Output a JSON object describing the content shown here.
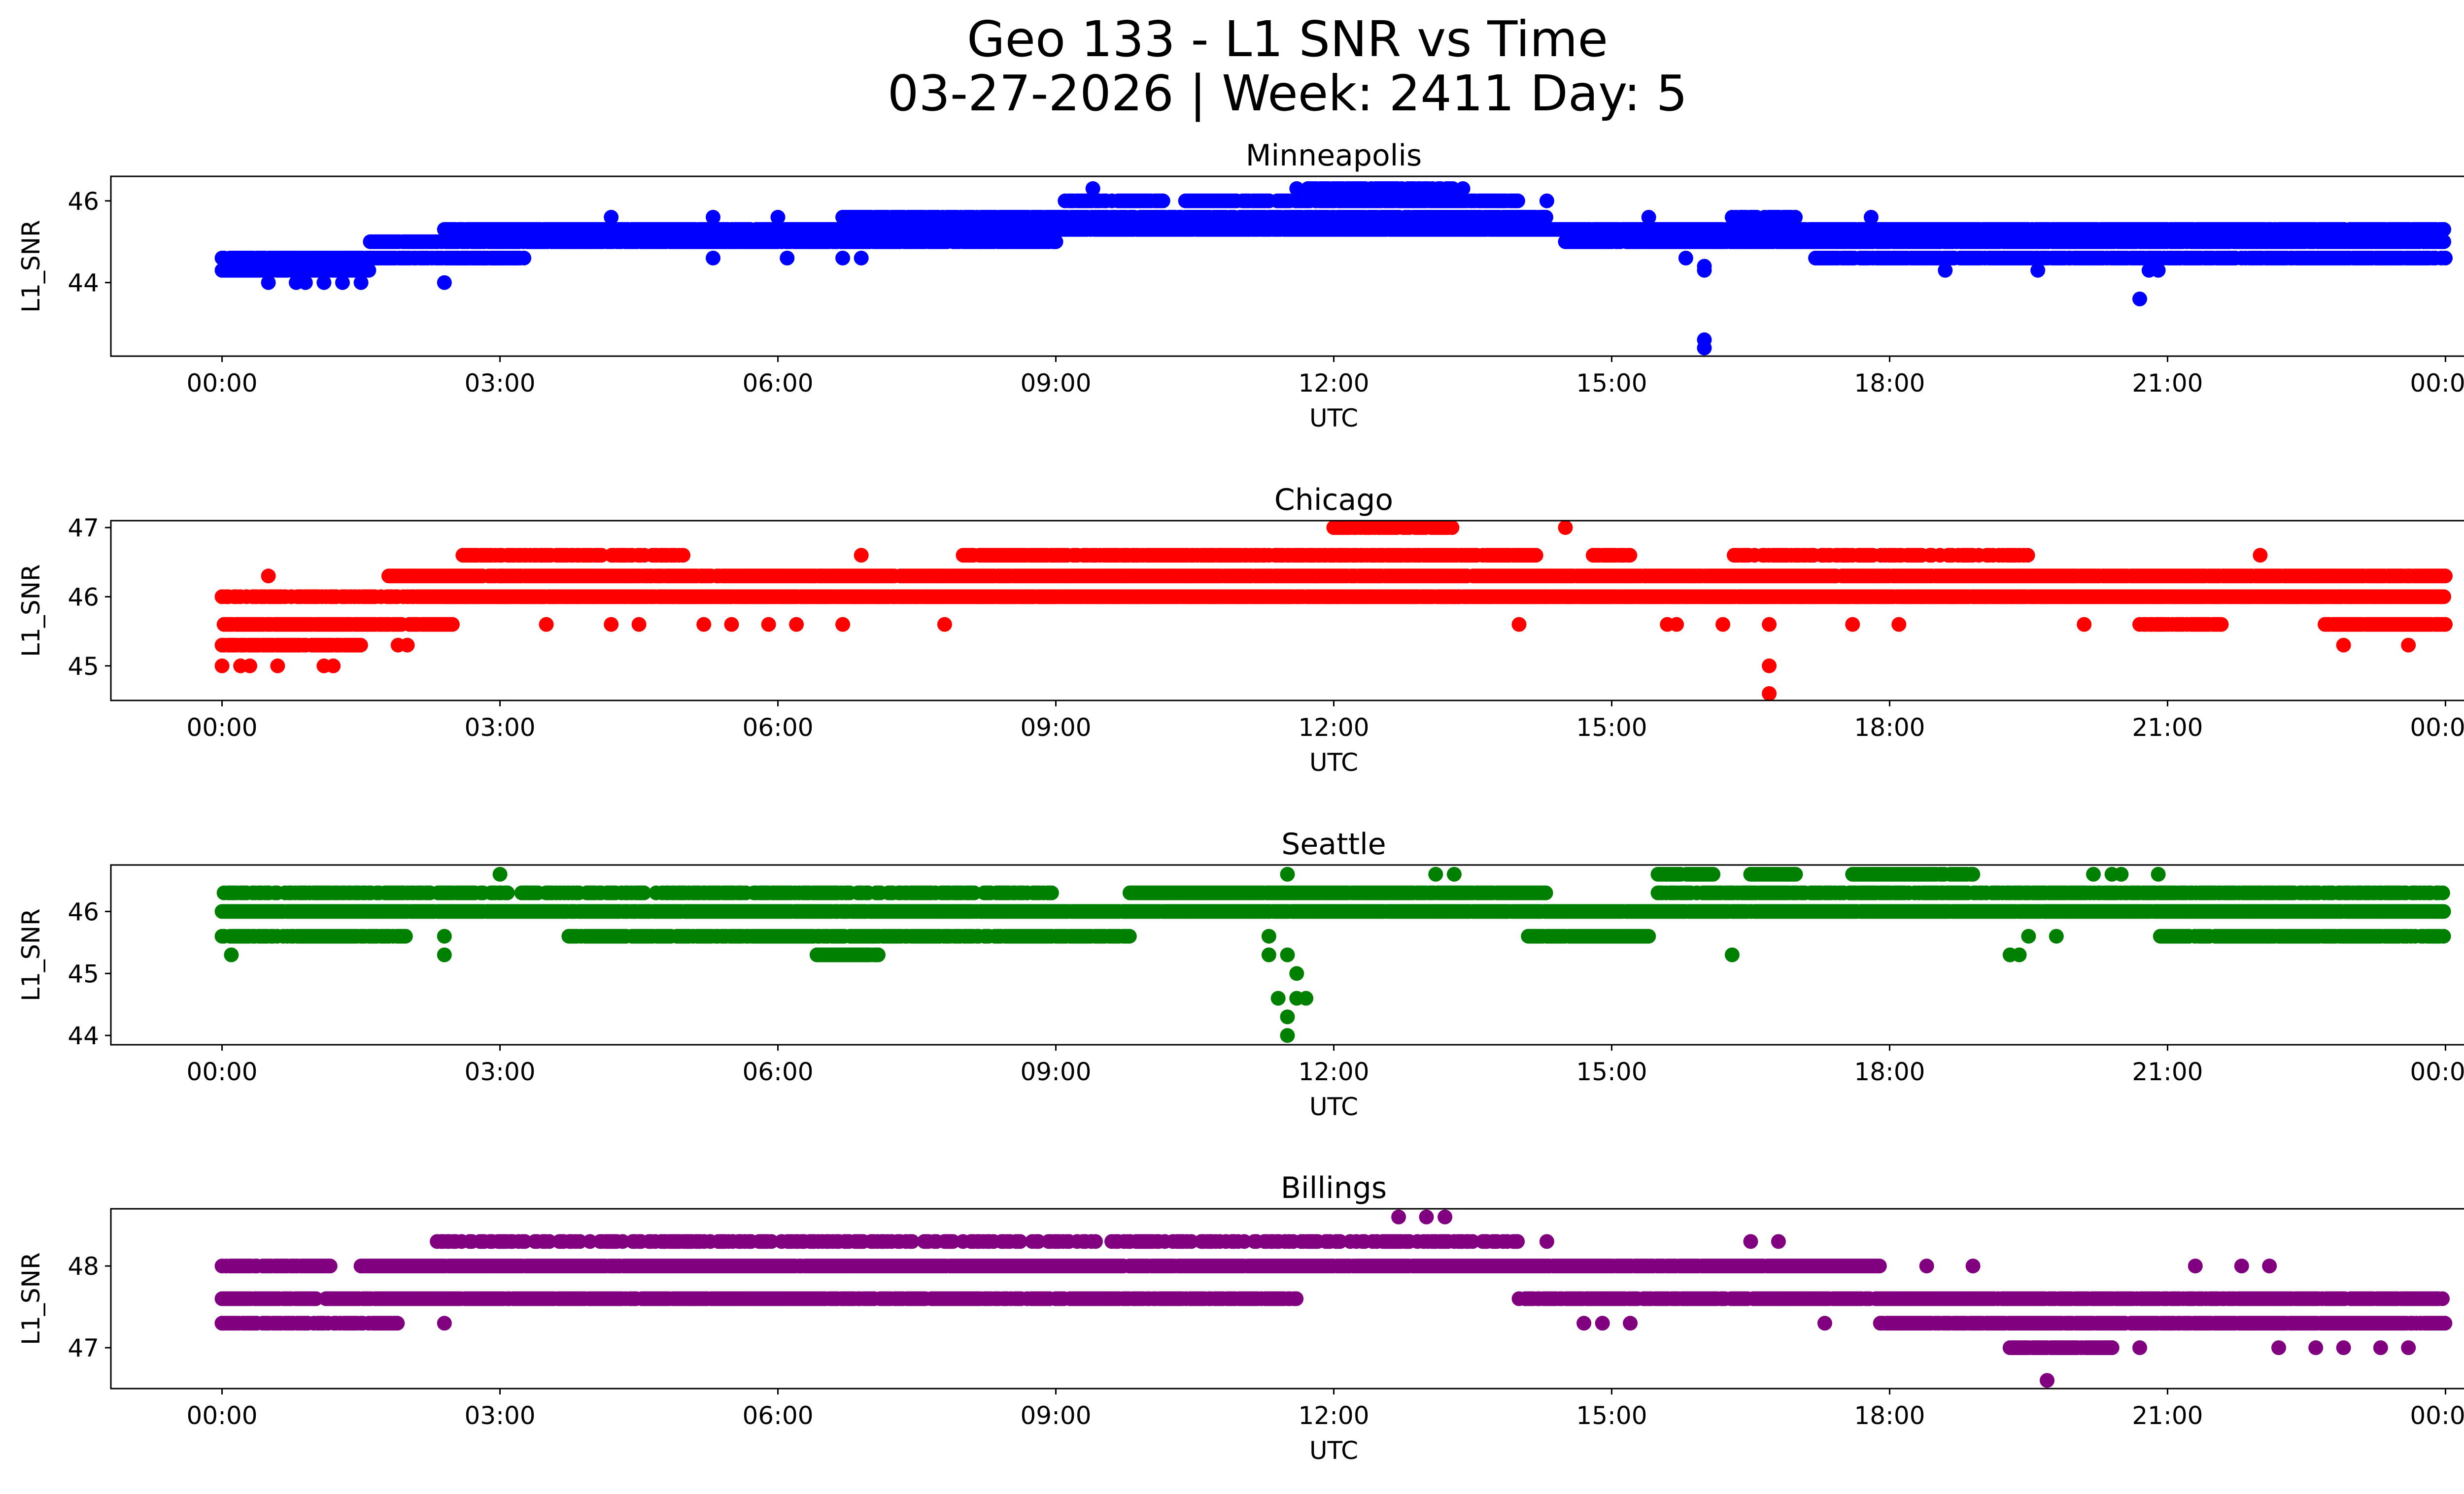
{
  "figure": {
    "title_line1": "Geo 133 - L1 SNR vs Time",
    "title_line2": "03-27-2026 | Week: 2411 Day: 5"
  },
  "chart_data": [
    {
      "type": "scatter",
      "title": "Minneapolis",
      "color": "#0000ff",
      "xlabel": "UTC",
      "ylabel": "L1_SNR",
      "x_unit": "hours UTC",
      "xlim": [
        -1.2,
        25.2
      ],
      "ylim": [
        42.2,
        46.6
      ],
      "xticks": [
        0,
        3,
        6,
        9,
        12,
        15,
        18,
        21,
        24
      ],
      "xtick_labels": [
        "00:00",
        "03:00",
        "06:00",
        "09:00",
        "12:00",
        "15:00",
        "18:00",
        "21:00",
        "00:00"
      ],
      "yticks": [
        44,
        46
      ],
      "ytick_labels": [
        "44",
        "46"
      ],
      "bands": [
        {
          "y": 44.3,
          "from": 0.0,
          "to": 1.6,
          "density": 0.95
        },
        {
          "y": 44.6,
          "from": 0.0,
          "to": 3.2,
          "density": 0.9
        },
        {
          "y": 45.0,
          "from": 1.6,
          "to": 9.0,
          "density": 0.9
        },
        {
          "y": 45.0,
          "from": 14.5,
          "to": 24.0,
          "density": 0.95
        },
        {
          "y": 45.3,
          "from": 2.4,
          "to": 24.0,
          "density": 0.95
        },
        {
          "y": 45.6,
          "from": 6.7,
          "to": 14.3,
          "density": 0.9
        },
        {
          "y": 45.6,
          "from": 16.3,
          "to": 17.0,
          "density": 0.8
        },
        {
          "y": 46.0,
          "from": 9.1,
          "to": 10.2,
          "density": 0.8
        },
        {
          "y": 46.0,
          "from": 10.4,
          "to": 14.0,
          "density": 0.85
        },
        {
          "y": 46.3,
          "from": 11.7,
          "to": 13.4,
          "density": 0.8
        },
        {
          "y": 44.6,
          "from": 2.4,
          "to": 3.3,
          "density": 0.7
        },
        {
          "y": 44.6,
          "from": 17.2,
          "to": 24.0,
          "density": 0.85
        }
      ],
      "points": [
        [
          0.5,
          44.0
        ],
        [
          0.8,
          44.0
        ],
        [
          0.9,
          44.0
        ],
        [
          1.1,
          44.0
        ],
        [
          1.3,
          44.0
        ],
        [
          1.5,
          44.0
        ],
        [
          2.4,
          44.0
        ],
        [
          4.2,
          45.6
        ],
        [
          5.3,
          44.6
        ],
        [
          5.3,
          45.6
        ],
        [
          6.0,
          45.6
        ],
        [
          6.1,
          44.6
        ],
        [
          6.7,
          44.6
        ],
        [
          6.9,
          44.6
        ],
        [
          8.8,
          45.0
        ],
        [
          9.0,
          45.0
        ],
        [
          9.4,
          46.3
        ],
        [
          11.6,
          46.3
        ],
        [
          11.8,
          45.6
        ],
        [
          12.4,
          45.6
        ],
        [
          14.3,
          46.0
        ],
        [
          15.4,
          45.6
        ],
        [
          15.8,
          44.6
        ],
        [
          16.0,
          44.3
        ],
        [
          16.0,
          44.4
        ],
        [
          16.0,
          42.6
        ],
        [
          16.0,
          42.4
        ],
        [
          18.6,
          44.3
        ],
        [
          19.6,
          44.3
        ],
        [
          20.7,
          43.6
        ],
        [
          20.8,
          44.3
        ],
        [
          20.9,
          44.3
        ],
        [
          17.8,
          45.6
        ]
      ]
    },
    {
      "type": "scatter",
      "title": "Chicago",
      "color": "#ff0000",
      "xlabel": "UTC",
      "ylabel": "L1_SNR",
      "x_unit": "hours UTC",
      "xlim": [
        -1.2,
        25.2
      ],
      "ylim": [
        44.5,
        47.1
      ],
      "xticks": [
        0,
        3,
        6,
        9,
        12,
        15,
        18,
        21,
        24
      ],
      "xtick_labels": [
        "00:00",
        "03:00",
        "06:00",
        "09:00",
        "12:00",
        "15:00",
        "18:00",
        "21:00",
        "00:00"
      ],
      "yticks": [
        45,
        46,
        47
      ],
      "ytick_labels": [
        "45",
        "46",
        "47"
      ],
      "bands": [
        {
          "y": 45.3,
          "from": 0.0,
          "to": 1.5,
          "density": 0.8
        },
        {
          "y": 45.6,
          "from": 0.0,
          "to": 2.5,
          "density": 0.9
        },
        {
          "y": 46.0,
          "from": 0.0,
          "to": 24.0,
          "density": 0.7
        },
        {
          "y": 46.0,
          "from": 2.4,
          "to": 24.0,
          "density": 0.95
        },
        {
          "y": 46.3,
          "from": 1.8,
          "to": 24.0,
          "density": 0.95
        },
        {
          "y": 46.6,
          "from": 2.6,
          "to": 5.0,
          "density": 0.7
        },
        {
          "y": 46.6,
          "from": 8.0,
          "to": 14.2,
          "density": 0.85
        },
        {
          "y": 46.6,
          "from": 14.8,
          "to": 15.2,
          "density": 0.8
        },
        {
          "y": 46.6,
          "from": 16.3,
          "to": 19.5,
          "density": 0.6
        },
        {
          "y": 47.0,
          "from": 12.0,
          "to": 13.3,
          "density": 0.85
        },
        {
          "y": 45.6,
          "from": 20.7,
          "to": 21.6,
          "density": 0.85
        },
        {
          "y": 45.6,
          "from": 22.7,
          "to": 24.0,
          "density": 0.9
        }
      ],
      "points": [
        [
          0.0,
          45.0
        ],
        [
          0.2,
          45.0
        ],
        [
          0.3,
          45.0
        ],
        [
          0.6,
          45.0
        ],
        [
          1.1,
          45.0
        ],
        [
          1.2,
          45.0
        ],
        [
          0.5,
          46.3
        ],
        [
          1.9,
          45.3
        ],
        [
          2.0,
          45.3
        ],
        [
          3.5,
          45.6
        ],
        [
          4.2,
          45.6
        ],
        [
          4.5,
          45.6
        ],
        [
          5.2,
          45.6
        ],
        [
          5.5,
          45.6
        ],
        [
          5.9,
          45.6
        ],
        [
          6.2,
          45.6
        ],
        [
          6.7,
          45.6
        ],
        [
          6.9,
          46.6
        ],
        [
          7.8,
          45.6
        ],
        [
          14.0,
          45.6
        ],
        [
          14.5,
          47.0
        ],
        [
          15.6,
          45.6
        ],
        [
          15.7,
          45.6
        ],
        [
          16.2,
          45.6
        ],
        [
          16.7,
          45.6
        ],
        [
          16.7,
          45.0
        ],
        [
          16.7,
          44.6
        ],
        [
          17.6,
          45.6
        ],
        [
          18.1,
          45.6
        ],
        [
          20.1,
          45.6
        ],
        [
          22.0,
          46.6
        ],
        [
          22.9,
          45.3
        ],
        [
          23.6,
          45.3
        ]
      ]
    },
    {
      "type": "scatter",
      "title": "Seattle",
      "color": "#008000",
      "xlabel": "UTC",
      "ylabel": "L1_SNR",
      "x_unit": "hours UTC",
      "xlim": [
        -1.2,
        25.2
      ],
      "ylim": [
        43.85,
        46.75
      ],
      "xticks": [
        0,
        3,
        6,
        9,
        12,
        15,
        18,
        21,
        24
      ],
      "xtick_labels": [
        "00:00",
        "03:00",
        "06:00",
        "09:00",
        "12:00",
        "15:00",
        "18:00",
        "21:00",
        "00:00"
      ],
      "yticks": [
        44,
        45,
        46
      ],
      "ytick_labels": [
        "44",
        "45",
        "46"
      ],
      "bands": [
        {
          "y": 45.6,
          "from": 0.0,
          "to": 2.0,
          "density": 0.85
        },
        {
          "y": 45.6,
          "from": 3.7,
          "to": 9.8,
          "density": 0.85
        },
        {
          "y": 45.6,
          "from": 14.1,
          "to": 15.4,
          "density": 0.95
        },
        {
          "y": 45.6,
          "from": 20.9,
          "to": 24.0,
          "density": 0.9
        },
        {
          "y": 46.0,
          "from": 0.0,
          "to": 24.0,
          "density": 0.97
        },
        {
          "y": 46.3,
          "from": 0.0,
          "to": 9.0,
          "density": 0.65
        },
        {
          "y": 46.3,
          "from": 9.8,
          "to": 14.3,
          "density": 0.95
        },
        {
          "y": 46.3,
          "from": 15.5,
          "to": 24.0,
          "density": 0.75
        },
        {
          "y": 46.6,
          "from": 15.5,
          "to": 16.1,
          "density": 0.9
        },
        {
          "y": 46.6,
          "from": 16.5,
          "to": 17.0,
          "density": 0.8
        },
        {
          "y": 46.6,
          "from": 17.6,
          "to": 18.9,
          "density": 0.9
        },
        {
          "y": 45.3,
          "from": 6.4,
          "to": 7.1,
          "density": 0.9
        }
      ],
      "points": [
        [
          0.1,
          45.3
        ],
        [
          2.4,
          45.3
        ],
        [
          2.4,
          45.6
        ],
        [
          3.0,
          46.6
        ],
        [
          11.3,
          45.3
        ],
        [
          11.3,
          45.6
        ],
        [
          11.5,
          45.3
        ],
        [
          11.6,
          45.0
        ],
        [
          11.4,
          44.6
        ],
        [
          11.6,
          44.6
        ],
        [
          11.7,
          44.6
        ],
        [
          11.5,
          44.3
        ],
        [
          11.5,
          44.0
        ],
        [
          11.5,
          46.6
        ],
        [
          13.1,
          46.6
        ],
        [
          13.3,
          46.6
        ],
        [
          16.3,
          45.3
        ],
        [
          19.3,
          45.3
        ],
        [
          19.4,
          45.3
        ],
        [
          19.5,
          45.6
        ],
        [
          19.8,
          45.6
        ],
        [
          20.2,
          46.6
        ],
        [
          20.4,
          46.6
        ],
        [
          20.5,
          46.6
        ],
        [
          20.9,
          46.6
        ],
        [
          22.1,
          45.6
        ]
      ]
    },
    {
      "type": "scatter",
      "title": "Billings",
      "color": "#800080",
      "xlabel": "UTC",
      "ylabel": "L1_SNR",
      "x_unit": "hours UTC",
      "xlim": [
        -1.2,
        25.2
      ],
      "ylim": [
        46.5,
        48.7
      ],
      "xticks": [
        0,
        3,
        6,
        9,
        12,
        15,
        18,
        21,
        24
      ],
      "xtick_labels": [
        "00:00",
        "03:00",
        "06:00",
        "09:00",
        "12:00",
        "15:00",
        "18:00",
        "21:00",
        "00:00"
      ],
      "yticks": [
        47,
        48
      ],
      "ytick_labels": [
        "47",
        "48"
      ],
      "bands": [
        {
          "y": 47.3,
          "from": 0.0,
          "to": 1.9,
          "density": 0.8
        },
        {
          "y": 47.6,
          "from": 0.0,
          "to": 11.6,
          "density": 0.9
        },
        {
          "y": 47.6,
          "from": 14.0,
          "to": 24.0,
          "density": 0.9
        },
        {
          "y": 48.0,
          "from": 0.0,
          "to": 1.2,
          "density": 0.9
        },
        {
          "y": 48.0,
          "from": 1.5,
          "to": 17.9,
          "density": 0.97
        },
        {
          "y": 48.3,
          "from": 2.3,
          "to": 14.0,
          "density": 0.55
        },
        {
          "y": 47.3,
          "from": 17.9,
          "to": 24.0,
          "density": 0.9
        },
        {
          "y": 47.0,
          "from": 19.3,
          "to": 20.4,
          "density": 0.9
        }
      ],
      "points": [
        [
          0.0,
          47.3
        ],
        [
          2.4,
          47.3
        ],
        [
          12.7,
          48.6
        ],
        [
          13.0,
          48.6
        ],
        [
          13.2,
          48.6
        ],
        [
          14.3,
          48.3
        ],
        [
          14.7,
          47.3
        ],
        [
          14.9,
          47.3
        ],
        [
          15.2,
          47.3
        ],
        [
          16.5,
          48.3
        ],
        [
          16.8,
          48.3
        ],
        [
          17.3,
          47.3
        ],
        [
          18.4,
          48.0
        ],
        [
          18.9,
          48.0
        ],
        [
          19.7,
          46.6
        ],
        [
          20.4,
          47.0
        ],
        [
          20.7,
          47.0
        ],
        [
          21.3,
          48.0
        ],
        [
          21.8,
          48.0
        ],
        [
          22.1,
          48.0
        ],
        [
          22.2,
          47.0
        ],
        [
          22.6,
          47.0
        ],
        [
          22.9,
          47.0
        ],
        [
          23.3,
          47.0
        ],
        [
          23.6,
          47.0
        ]
      ]
    }
  ]
}
